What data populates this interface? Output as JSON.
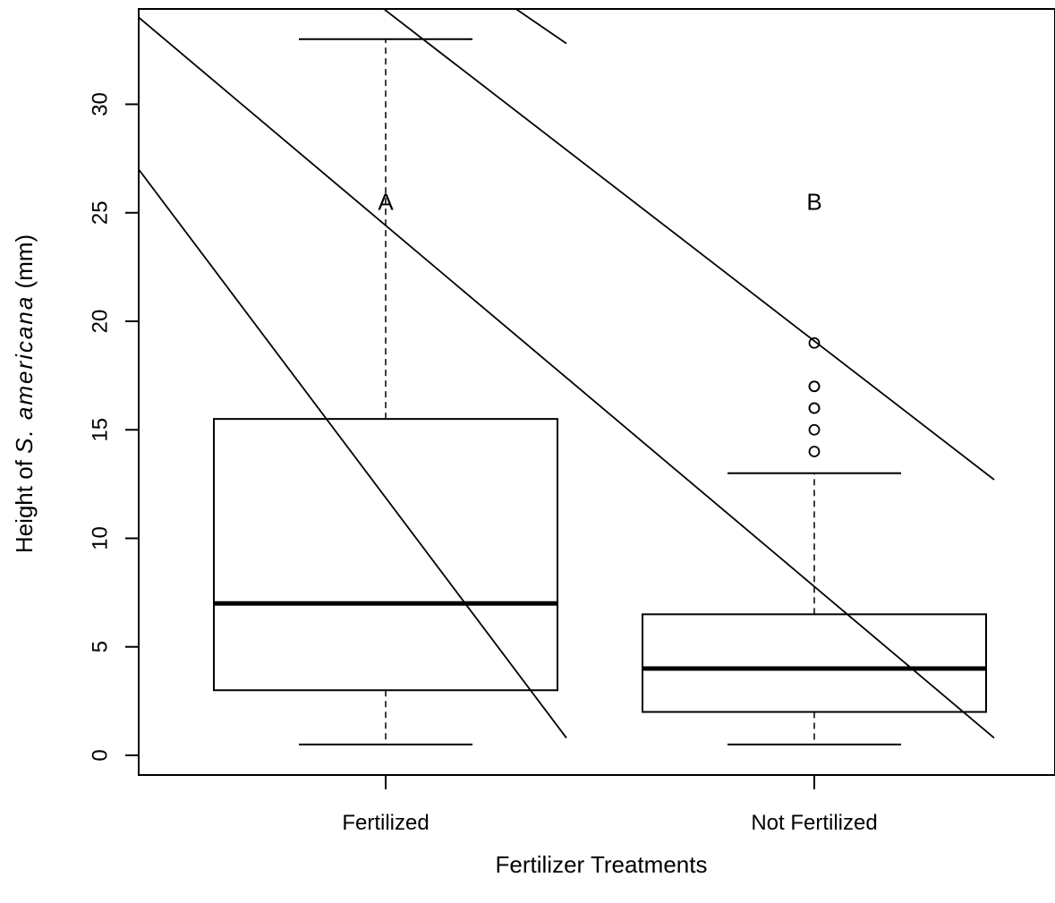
{
  "chart_data": {
    "type": "box",
    "xlabel": "Fertilizer Treatments",
    "ylabel": {
      "prefix": "Height of ",
      "species": "S. americana",
      "suffix": " (mm)"
    },
    "ylim": [
      -1,
      34
    ],
    "yticks": [
      0,
      5,
      10,
      15,
      20,
      25,
      30
    ],
    "grid": false,
    "categories": [
      "Fertilized",
      "Not Fertilized"
    ],
    "boxes": [
      {
        "name": "Fertilized",
        "whisker_low": 0.5,
        "q1": 3,
        "median": 7,
        "q3": 15.5,
        "whisker_high": 33,
        "outliers": [],
        "group_letter": "A"
      },
      {
        "name": "Not Fertilized",
        "whisker_low": 0.5,
        "q1": 2,
        "median": 4,
        "q3": 6.5,
        "whisker_high": 13,
        "outliers": [
          14,
          15,
          16,
          16,
          17,
          17,
          19
        ],
        "group_letter": "B"
      }
    ],
    "letter_y": 25.5,
    "annotation_lines": [
      {
        "x1": 0.0,
        "y1": 34.0,
        "x2": 2.0,
        "y2": 0.8
      },
      {
        "x1": 0.0,
        "y1": 27.0,
        "x2": 1.0,
        "y2": 0.8
      },
      {
        "x1": 0.5,
        "y1": 35.5,
        "x2": 2.0,
        "y2": 12.7
      },
      {
        "x1": 0.8,
        "y1": 35.5,
        "x2": 1.0,
        "y2": 32.8
      }
    ]
  }
}
